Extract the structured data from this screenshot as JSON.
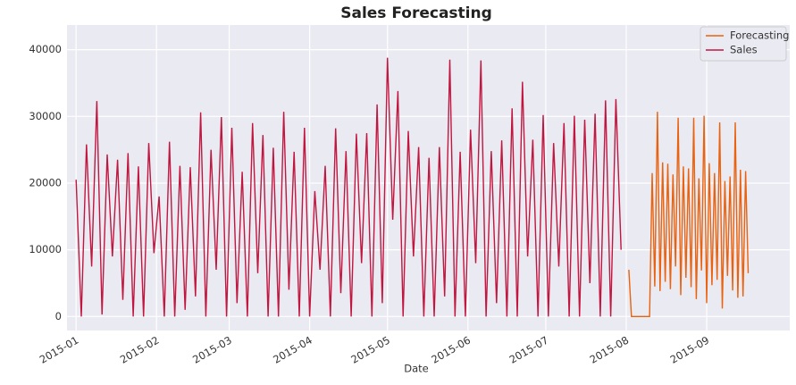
{
  "chart_data": {
    "type": "line",
    "title": "Sales Forecasting",
    "x_label": "Date",
    "xlim": [
      -3.5,
      275
    ],
    "ylim": [
      -2100,
      43700
    ],
    "xticks": [
      {
        "value": 0,
        "label": "2015-01"
      },
      {
        "value": 31,
        "label": "2015-02"
      },
      {
        "value": 59,
        "label": "2015-03"
      },
      {
        "value": 90,
        "label": "2015-04"
      },
      {
        "value": 120,
        "label": "2015-05"
      },
      {
        "value": 151,
        "label": "2015-06"
      },
      {
        "value": 181,
        "label": "2015-07"
      },
      {
        "value": 212,
        "label": "2015-08"
      },
      {
        "value": 243,
        "label": "2015-09"
      }
    ],
    "yticks": [
      0,
      10000,
      20000,
      30000,
      40000
    ],
    "grid": true,
    "legend": "upper right",
    "series": [
      {
        "name": "Forecasting",
        "color": "#e8620f",
        "x": [
          213,
          214,
          221,
          222,
          223,
          224,
          225,
          226,
          227,
          228,
          229,
          230,
          231,
          232,
          233,
          234,
          235,
          236,
          237,
          238,
          239,
          240,
          241,
          242,
          243,
          244,
          245,
          246,
          247,
          248,
          249,
          250,
          251,
          252,
          253,
          254,
          255,
          256,
          257,
          258,
          259
        ],
        "values": [
          7000,
          0,
          0,
          21500,
          4500,
          30700,
          3800,
          23100,
          5200,
          22900,
          4100,
          21300,
          7500,
          29800,
          3200,
          22500,
          5800,
          22200,
          4400,
          29800,
          2600,
          20700,
          6900,
          30100,
          2000,
          23000,
          4700,
          21500,
          5500,
          29100,
          1200,
          20300,
          6100,
          21000,
          3900,
          29100,
          2800,
          22000,
          3000,
          21800,
          6500
        ]
      },
      {
        "name": "Sales",
        "color": "#c0163f",
        "x": [
          0,
          2,
          4,
          6,
          8,
          10,
          12,
          14,
          16,
          18,
          20,
          22,
          24,
          26,
          28,
          30,
          32,
          34,
          36,
          38,
          40,
          42,
          44,
          46,
          48,
          50,
          52,
          54,
          56,
          58,
          60,
          62,
          64,
          66,
          68,
          70,
          72,
          74,
          76,
          78,
          80,
          82,
          84,
          86,
          88,
          90,
          92,
          94,
          96,
          98,
          100,
          102,
          104,
          106,
          108,
          110,
          112,
          114,
          116,
          118,
          120,
          122,
          124,
          126,
          128,
          130,
          132,
          134,
          136,
          138,
          140,
          142,
          144,
          146,
          148,
          150,
          152,
          154,
          156,
          158,
          160,
          162,
          164,
          166,
          168,
          170,
          172,
          174,
          176,
          178,
          180,
          182,
          184,
          186,
          188,
          190,
          192,
          194,
          196,
          198,
          200,
          202,
          204,
          206,
          208,
          210
        ],
        "values": [
          20500,
          0,
          25800,
          7500,
          32300,
          300,
          24300,
          9000,
          23500,
          2500,
          24500,
          0,
          22500,
          0,
          26000,
          9500,
          18000,
          0,
          26200,
          0,
          22600,
          1000,
          22400,
          3000,
          30600,
          0,
          25000,
          7000,
          29900,
          0,
          28300,
          2000,
          21700,
          0,
          29000,
          6500,
          27200,
          0,
          25300,
          0,
          30700,
          4000,
          24700,
          0,
          28300,
          0,
          18800,
          7000,
          22600,
          0,
          28200,
          3500,
          24800,
          0,
          27400,
          8000,
          27500,
          0,
          31800,
          2000,
          38800,
          14500,
          33800,
          0,
          27800,
          9000,
          25400,
          0,
          23800,
          0,
          25400,
          3000,
          38500,
          0,
          24700,
          0,
          28000,
          8000,
          38400,
          0,
          24800,
          2000,
          26400,
          0,
          31200,
          0,
          35200,
          9000,
          26500,
          0,
          30200,
          0,
          26000,
          7500,
          29000,
          0,
          30100,
          0,
          29500,
          5000,
          30400,
          0,
          32400,
          0,
          32600,
          10000
        ]
      }
    ]
  }
}
